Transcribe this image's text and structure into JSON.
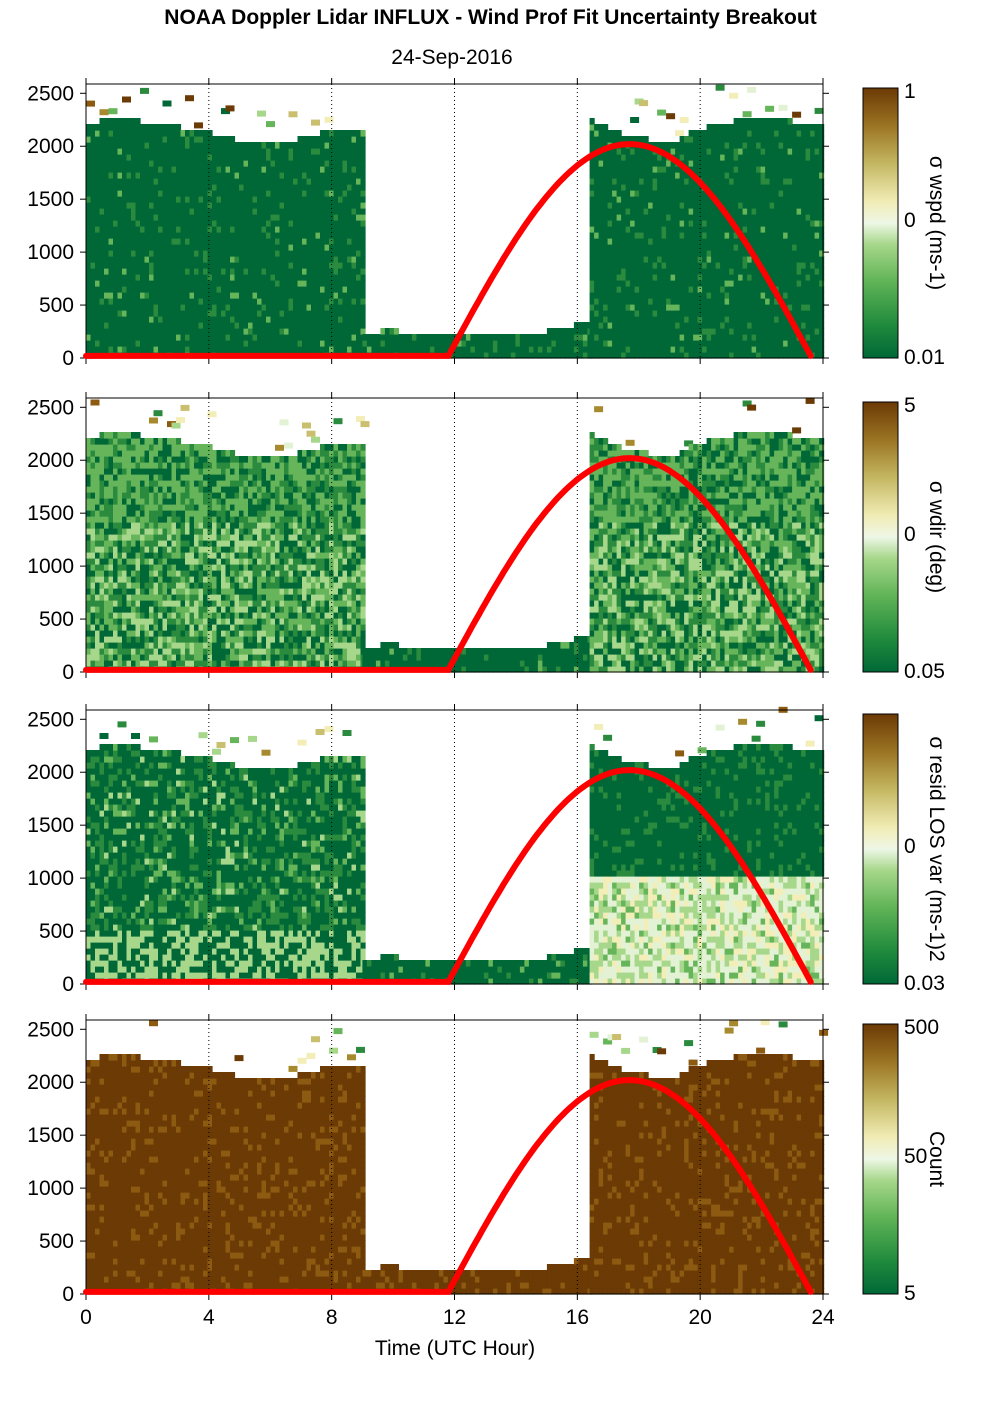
{
  "title": "NOAA Doppler Lidar INFLUX - Wind Prof Fit Uncertainty Breakout",
  "subtitle": "24-Sep-2016",
  "xlabel": "Time (UTC Hour)",
  "colors": {
    "data_gap": "#ffffff",
    "sun_curve": "#ff0000",
    "colormap": [
      "#006837",
      "#2a8a3e",
      "#66b55a",
      "#a6d78a",
      "#e3f2d4",
      "#f3edb8",
      "#c9bf6e",
      "#a88a2e",
      "#8c5a10",
      "#6b3a05"
    ]
  },
  "chart_data": [
    {
      "type": "heatmap",
      "panel": "wspd_uncertainty",
      "ylabel_html": "σ wspd (ms⁻¹)",
      "x_range": [
        0,
        24
      ],
      "y_range": [
        0,
        2550
      ],
      "x_ticks": [
        "0",
        "4",
        "8",
        "12",
        "16",
        "20",
        "24"
      ],
      "y_ticks": [
        "0",
        "500",
        "1000",
        "1500",
        "2000",
        "2500"
      ],
      "vertical_grid_hours": [
        4,
        8,
        12,
        16,
        20,
        24
      ],
      "colorbar": {
        "labels": [
          "1",
          "0",
          "0.01"
        ],
        "title": "σ wspd (ms-1)"
      },
      "segments": [
        {
          "x": [
            0,
            9
          ],
          "top": [
            2200,
            2230,
            2200,
            2150,
            2100,
            2020,
            2000,
            2050,
            2130,
            2150
          ],
          "value": "low"
        },
        {
          "x": [
            9,
            16.4
          ],
          "top": [
            220,
            230,
            220,
            210,
            200,
            200,
            210,
            220,
            260,
            340
          ],
          "value": "low"
        },
        {
          "x": [
            16.4,
            24
          ],
          "top": [
            2230,
            2100,
            2050,
            2000,
            2120,
            2200,
            2220,
            2230,
            2200,
            2180
          ],
          "value": "low"
        }
      ],
      "sun_elevation_curve": {
        "rise": 11.8,
        "peak_hour": 17.7,
        "peak_height": 2000,
        "set": 23.6
      }
    },
    {
      "type": "heatmap",
      "panel": "wdir_uncertainty",
      "x_range": [
        0,
        24
      ],
      "y_range": [
        0,
        2550
      ],
      "x_ticks": [
        "0",
        "4",
        "8",
        "12",
        "16",
        "20",
        "24"
      ],
      "y_ticks": [
        "0",
        "500",
        "1000",
        "1500",
        "2000",
        "2500"
      ],
      "colorbar": {
        "labels": [
          "5",
          "0",
          "0.05"
        ],
        "title": "σ wdir (deg)"
      },
      "segments": [
        {
          "x": [
            0,
            9
          ],
          "top": [
            2200,
            2230,
            2200,
            2150,
            2100,
            2020,
            2000,
            2050,
            2130,
            2150
          ],
          "value": "mixed"
        },
        {
          "x": [
            9,
            16.4
          ],
          "top": [
            220,
            230,
            220,
            210,
            200,
            200,
            210,
            220,
            260,
            340
          ],
          "value": "low"
        },
        {
          "x": [
            16.4,
            24
          ],
          "top": [
            2230,
            2100,
            2050,
            2000,
            2120,
            2200,
            2220,
            2230,
            2200,
            2180
          ],
          "value": "mixed"
        }
      ],
      "sun_elevation_curve": {
        "rise": 11.8,
        "peak_hour": 17.7,
        "peak_height": 2000,
        "set": 23.6
      }
    },
    {
      "type": "heatmap",
      "panel": "resid_los_var",
      "x_range": [
        0,
        24
      ],
      "y_range": [
        0,
        2550
      ],
      "x_ticks": [
        "0",
        "4",
        "8",
        "12",
        "16",
        "20",
        "24"
      ],
      "y_ticks": [
        "0",
        "500",
        "1000",
        "1500",
        "2000",
        "2500"
      ],
      "colorbar": {
        "labels": [
          "0",
          "0.03"
        ],
        "title": "σ resid LOS var (ms-1)2"
      },
      "segments": [
        {
          "x": [
            0,
            9
          ],
          "top": [
            2200,
            2230,
            2200,
            2150,
            2100,
            2020,
            2000,
            2050,
            2130,
            2150
          ],
          "value": "low-mixed"
        },
        {
          "x": [
            9,
            16.4
          ],
          "top": [
            220,
            230,
            220,
            210,
            200,
            200,
            210,
            220,
            260,
            340
          ],
          "value": "low"
        },
        {
          "x": [
            16.4,
            24
          ],
          "top": [
            2230,
            2100,
            2050,
            2000,
            2120,
            2200,
            2220,
            2230,
            2200,
            2180
          ],
          "value": "bl-high"
        }
      ],
      "sun_elevation_curve": {
        "rise": 11.8,
        "peak_hour": 17.7,
        "peak_height": 2000,
        "set": 23.6
      }
    },
    {
      "type": "heatmap",
      "panel": "count",
      "x_range": [
        0,
        24
      ],
      "y_range": [
        0,
        2550
      ],
      "x_ticks": [
        "0",
        "4",
        "8",
        "12",
        "16",
        "20",
        "24"
      ],
      "y_ticks": [
        "0",
        "500",
        "1000",
        "1500",
        "2000",
        "2500"
      ],
      "colorbar": {
        "labels": [
          "500",
          "50",
          "5"
        ],
        "title": "Count"
      },
      "segments": [
        {
          "x": [
            0,
            9
          ],
          "top": [
            2200,
            2230,
            2200,
            2150,
            2100,
            2020,
            2000,
            2050,
            2130,
            2150
          ],
          "value": "high"
        },
        {
          "x": [
            9,
            16.4
          ],
          "top": [
            220,
            230,
            220,
            210,
            200,
            200,
            210,
            220,
            260,
            340
          ],
          "value": "high"
        },
        {
          "x": [
            16.4,
            24
          ],
          "top": [
            2230,
            2100,
            2050,
            2000,
            2120,
            2200,
            2220,
            2230,
            2200,
            2180
          ],
          "value": "high"
        }
      ],
      "sun_elevation_curve": {
        "rise": 11.8,
        "peak_hour": 17.7,
        "peak_height": 2000,
        "set": 23.6
      }
    }
  ]
}
